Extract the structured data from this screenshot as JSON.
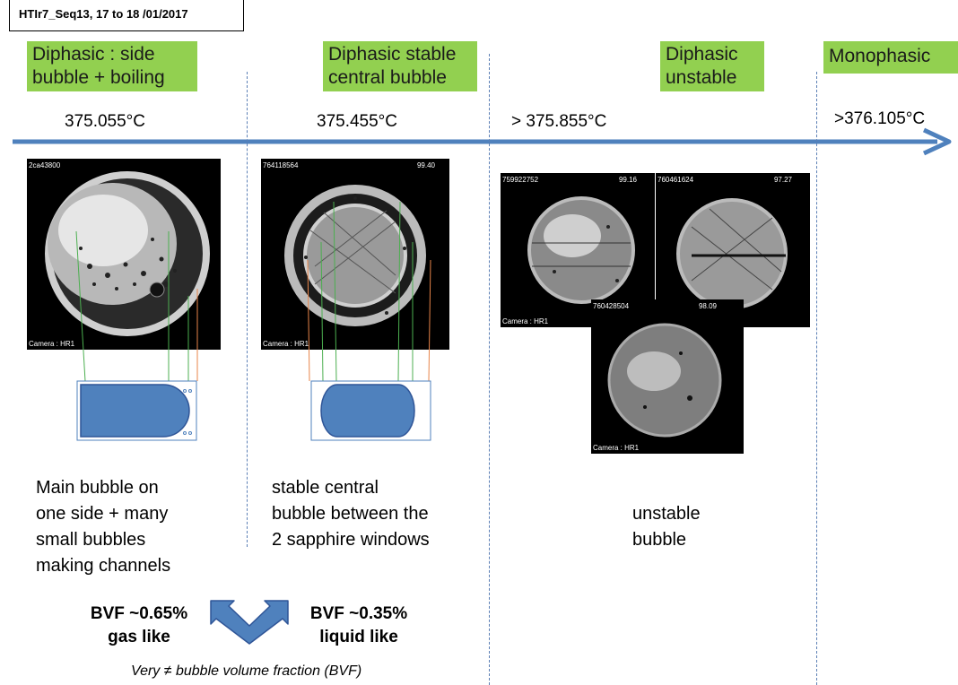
{
  "title": "HTIr7_Seq13, 17 to 18 /01/2017",
  "phases": [
    {
      "line1": "Diphasic : side",
      "line2": "bubble + boiling",
      "temp": "375.055°C"
    },
    {
      "line1": "Diphasic stable",
      "line2": "central bubble",
      "temp": "375.455°C"
    },
    {
      "line1": "Diphasic",
      "line2": "unstable",
      "temp": "> 375.855°C"
    },
    {
      "line1": "Monophasic",
      "line2": "",
      "temp": ">376.105°C"
    }
  ],
  "images": [
    {
      "id": "2ca43800",
      "value": "",
      "camera": "Camera : HR1"
    },
    {
      "id": "764118564",
      "value": "99.40",
      "camera": "Camera : HR1"
    },
    {
      "id": "759922752",
      "value": "99.16",
      "camera": "Camera : HR1"
    },
    {
      "id": "760461624",
      "value": "97.27",
      "camera": ""
    },
    {
      "id": "760428504",
      "value": "98.09",
      "camera": "Camera : HR1"
    }
  ],
  "descriptions": [
    {
      "lines": [
        "Main bubble on",
        "one side + many",
        "small bubbles",
        "making channels"
      ]
    },
    {
      "lines": [
        "stable central",
        "bubble between the",
        "2 sapphire windows"
      ]
    },
    {
      "lines": [
        "unstable",
        "bubble"
      ]
    }
  ],
  "bvf_left": {
    "line1": "BVF ~0.65%",
    "line2": "gas like"
  },
  "bvf_right": {
    "line1": "BVF ~0.35%",
    "line2": "liquid like"
  },
  "note": "Very ≠ bubble volume fraction (BVF)",
  "colors": {
    "arrow": "#4f81bd",
    "phase_label_bg": "#92d050",
    "bubble_fill": "#4f81bd"
  }
}
